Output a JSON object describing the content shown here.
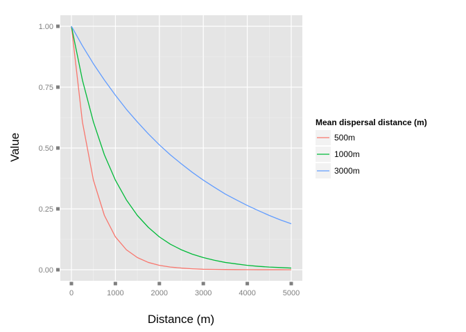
{
  "chart_data": {
    "type": "line",
    "xlabel": "Distance (m)",
    "ylabel": "Value",
    "xlim": [
      0,
      5000
    ],
    "ylim": [
      0,
      1
    ],
    "x_ticks": [
      0,
      1000,
      2000,
      3000,
      4000,
      5000
    ],
    "x_tick_labels": [
      "0",
      "1000",
      "2000",
      "3000",
      "4000",
      "5000"
    ],
    "y_ticks": [
      0,
      0.25,
      0.5,
      0.75,
      1
    ],
    "y_tick_labels": [
      "0.00",
      "0.25",
      "0.50",
      "0.75",
      "1.00"
    ],
    "grid": true,
    "legend": {
      "title": "Mean dispersal distance (m)",
      "position": "right"
    },
    "x": [
      0,
      250,
      500,
      750,
      1000,
      1250,
      1500,
      1750,
      2000,
      2250,
      2500,
      2750,
      3000,
      3250,
      3500,
      3750,
      4000,
      4250,
      4500,
      4750,
      5000
    ],
    "series": [
      {
        "name": "500m",
        "color": "#F8766D",
        "values": [
          1.0,
          0.607,
          0.368,
          0.223,
          0.135,
          0.082,
          0.05,
          0.03,
          0.018,
          0.011,
          0.007,
          0.004,
          0.002,
          0.0015,
          0.0009,
          0.0006,
          0.0003,
          0.0002,
          0.0001,
          0.0001,
          0.0
        ]
      },
      {
        "name": "1000m",
        "color": "#00BA38",
        "values": [
          1.0,
          0.779,
          0.607,
          0.472,
          0.368,
          0.287,
          0.223,
          0.174,
          0.135,
          0.105,
          0.082,
          0.064,
          0.05,
          0.039,
          0.03,
          0.024,
          0.018,
          0.014,
          0.011,
          0.009,
          0.007
        ]
      },
      {
        "name": "3000m",
        "color": "#619CFF",
        "values": [
          1.0,
          0.92,
          0.846,
          0.779,
          0.717,
          0.659,
          0.607,
          0.558,
          0.513,
          0.472,
          0.435,
          0.4,
          0.368,
          0.339,
          0.311,
          0.287,
          0.264,
          0.243,
          0.223,
          0.205,
          0.189
        ]
      }
    ]
  }
}
